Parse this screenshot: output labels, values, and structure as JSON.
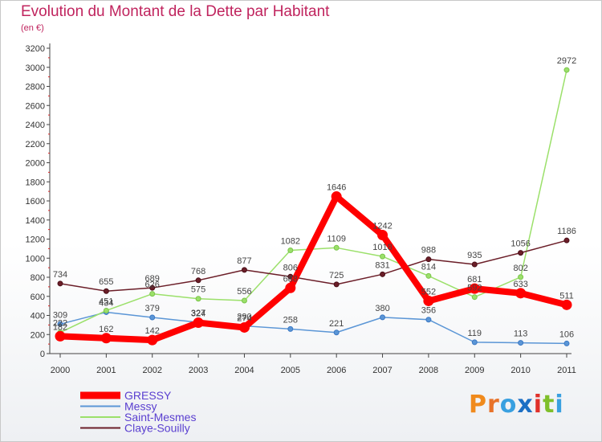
{
  "title": "Evolution du Montant de la Dette par Habitant",
  "subtitle": "(en €)",
  "logo_text": "Proxiti",
  "chart_data": {
    "type": "line",
    "title": "Evolution du Montant de la Dette par Habitant",
    "subtitle": "(en €)",
    "xlabel": "",
    "ylabel": "",
    "x": [
      "2000",
      "2001",
      "2002",
      "2003",
      "2004",
      "2005",
      "2006",
      "2007",
      "2008",
      "2009",
      "2010",
      "2011"
    ],
    "ylim": [
      0,
      3200
    ],
    "yticks": [
      0,
      200,
      400,
      600,
      800,
      1000,
      1200,
      1400,
      1600,
      1800,
      2000,
      2200,
      2400,
      2600,
      2800,
      3000,
      3200
    ],
    "grid": false,
    "legend_position": "bottom-left",
    "series": [
      {
        "name": "GRESSY",
        "color": "#ff0000",
        "values": [
          182,
          162,
          142,
          324,
          274,
          688,
          1646,
          1242,
          552,
          681,
          633,
          511
        ]
      },
      {
        "name": "Messy",
        "color": "#5b96d6",
        "values": [
          309,
          434,
          379,
          327,
          290,
          258,
          221,
          380,
          356,
          119,
          113,
          106
        ]
      },
      {
        "name": "Saint-Mesmes",
        "color": "#9be06a",
        "values": [
          222,
          451,
          626,
          575,
          556,
          1082,
          1109,
          1018,
          814,
          592,
          802,
          2972
        ]
      },
      {
        "name": "Claye-Souilly",
        "color": "#6b1e28",
        "values": [
          734,
          655,
          689,
          768,
          877,
          806,
          725,
          831,
          988,
          935,
          1056,
          1186
        ]
      }
    ]
  }
}
